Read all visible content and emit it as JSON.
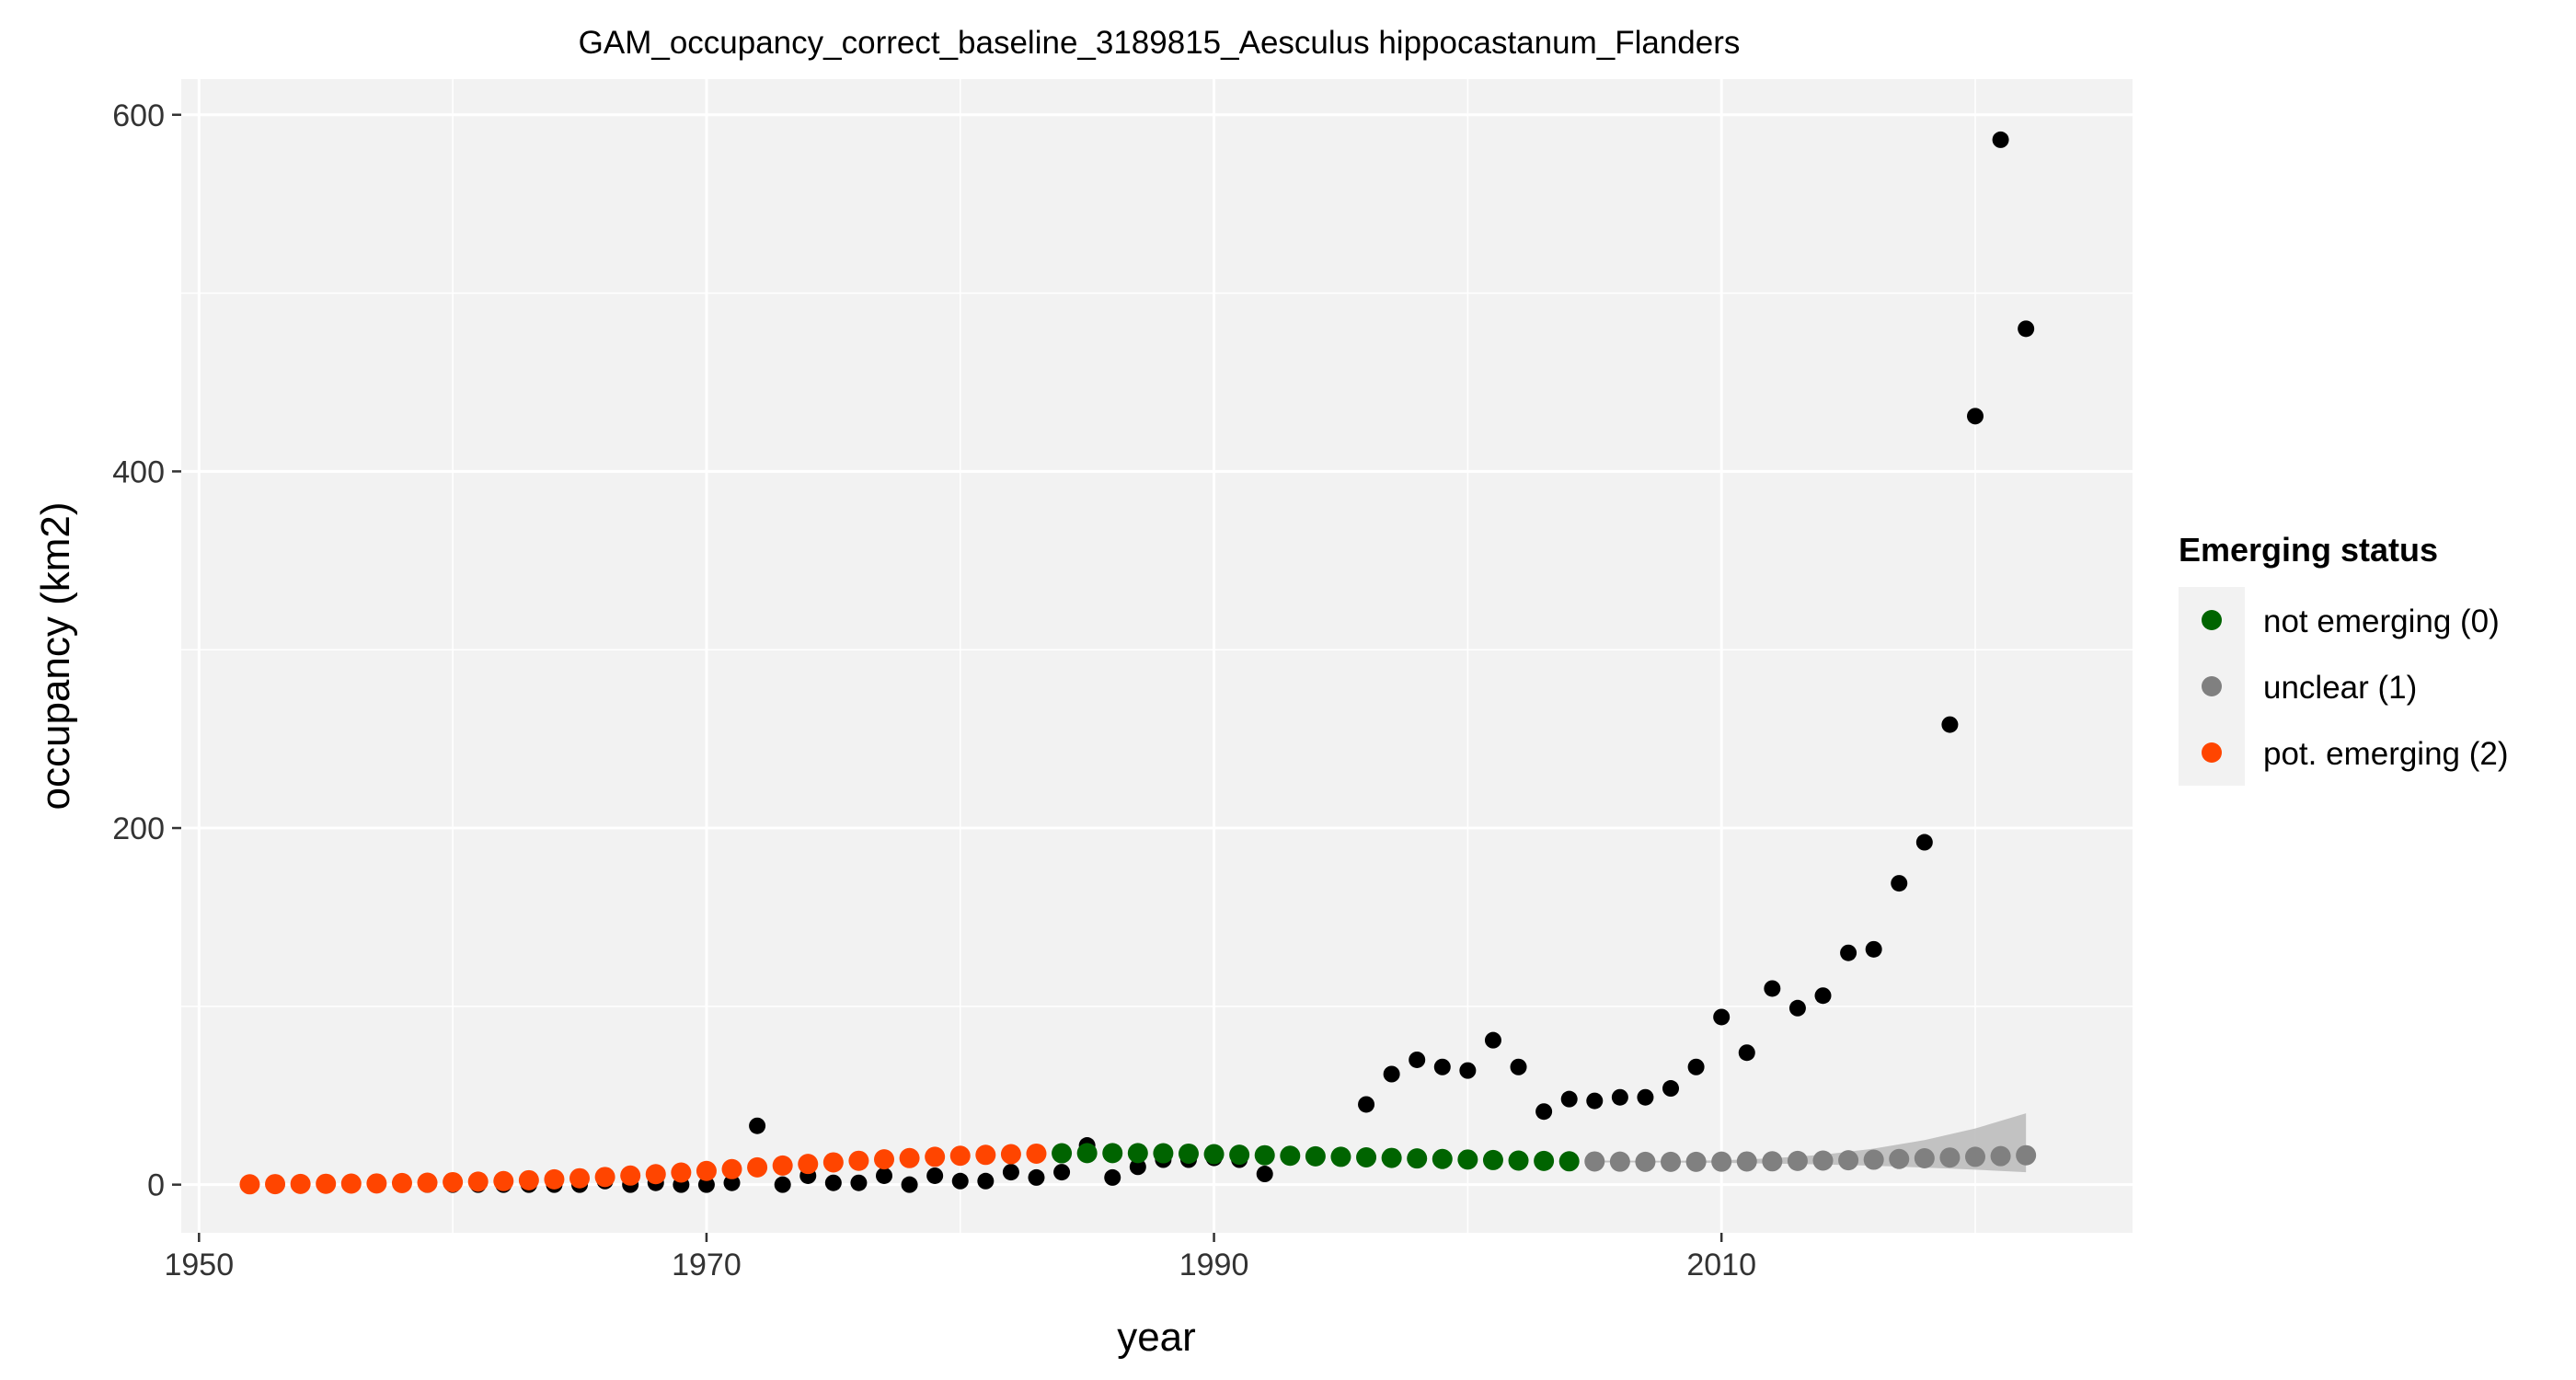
{
  "chart_data": {
    "type": "scatter",
    "title": "GAM_occupancy_correct_baseline_3189815_Aesculus hippocastanum_Flanders",
    "xlabel": "year",
    "ylabel": "occupancy (km2)",
    "xlim": [
      1949.3,
      2026.2
    ],
    "ylim": [
      -27,
      620
    ],
    "x_ticks": [
      1950,
      1970,
      1990,
      2010
    ],
    "y_ticks": [
      0,
      200,
      400,
      600
    ],
    "grid": true,
    "legend_position": "right",
    "legend": {
      "title": "Emerging status",
      "entries": [
        {
          "label": "not emerging (0)",
          "color": "#006400"
        },
        {
          "label": "unclear (1)",
          "color": "#808080"
        },
        {
          "label": "pot. emerging (2)",
          "color": "#ff4500"
        }
      ]
    },
    "colors": {
      "panel_background": "#f2f2f2",
      "grid": "#ffffff",
      "observed": "#000000",
      "ribbon": "#bdbdbd"
    },
    "observed": {
      "name": "observed",
      "x": [
        1952,
        1953,
        1954,
        1955,
        1956,
        1957,
        1958,
        1959,
        1960,
        1961,
        1962,
        1963,
        1964,
        1965,
        1966,
        1967,
        1968,
        1969,
        1970,
        1971,
        1972,
        1973,
        1974,
        1975,
        1976,
        1977,
        1978,
        1979,
        1980,
        1981,
        1982,
        1983,
        1984,
        1985,
        1986,
        1987,
        1988,
        1989,
        1990,
        1991,
        1992,
        1993,
        1994,
        1995,
        1996,
        1997,
        1998,
        1999,
        2000,
        2001,
        2002,
        2003,
        2004,
        2005,
        2006,
        2007,
        2008,
        2009,
        2010,
        2011,
        2012,
        2013,
        2014,
        2015,
        2016,
        2017,
        2018,
        2019,
        2020,
        2021,
        2022
      ],
      "y": [
        0,
        0,
        0,
        0,
        0,
        0,
        0,
        0,
        0,
        0,
        0,
        0,
        0,
        0,
        2,
        0,
        1,
        0,
        0,
        1,
        33,
        0,
        5,
        1,
        1,
        5,
        0,
        5,
        2,
        2,
        7,
        4,
        7,
        22,
        4,
        10,
        14,
        14,
        15,
        14,
        6,
        16,
        16,
        16,
        45,
        62,
        70,
        66,
        64,
        81,
        66,
        41,
        48,
        47,
        49,
        49,
        54,
        66,
        94,
        74,
        110,
        99,
        106,
        130,
        132,
        169,
        192,
        258,
        431,
        586,
        480
      ]
    },
    "gam_fit": {
      "name": "GAM fit",
      "x": [
        1952,
        1953,
        1954,
        1955,
        1956,
        1957,
        1958,
        1959,
        1960,
        1961,
        1962,
        1963,
        1964,
        1965,
        1966,
        1967,
        1968,
        1969,
        1970,
        1971,
        1972,
        1973,
        1974,
        1975,
        1976,
        1977,
        1978,
        1979,
        1980,
        1981,
        1982,
        1983,
        1984,
        1985,
        1986,
        1987,
        1988,
        1989,
        1990,
        1991,
        1992,
        1993,
        1994,
        1995,
        1996,
        1997,
        1998,
        1999,
        2000,
        2001,
        2002,
        2003,
        2004,
        2005,
        2006,
        2007,
        2008,
        2009,
        2010,
        2011,
        2012,
        2013,
        2014,
        2015,
        2016,
        2017,
        2018,
        2019,
        2020,
        2021,
        2022
      ],
      "y": [
        0.2,
        0.3,
        0.4,
        0.5,
        0.6,
        0.7,
        0.9,
        1.1,
        1.4,
        1.7,
        2.0,
        2.5,
        3.0,
        3.6,
        4.3,
        5.1,
        5.9,
        6.8,
        7.7,
        8.7,
        9.7,
        10.7,
        11.6,
        12.5,
        13.4,
        14.2,
        14.9,
        15.6,
        16.2,
        16.7,
        17.1,
        17.4,
        17.6,
        17.7,
        17.7,
        17.7,
        17.6,
        17.4,
        17.1,
        16.8,
        16.5,
        16.2,
        15.9,
        15.6,
        15.3,
        15.0,
        14.7,
        14.4,
        14.1,
        13.8,
        13.5,
        13.3,
        13.1,
        13.0,
        12.9,
        12.8,
        12.8,
        12.8,
        12.9,
        13.0,
        13.1,
        13.3,
        13.5,
        13.7,
        14.0,
        14.4,
        14.8,
        15.2,
        15.6,
        16.0,
        16.5
      ],
      "status": [
        2,
        2,
        2,
        2,
        2,
        2,
        2,
        2,
        2,
        2,
        2,
        2,
        2,
        2,
        2,
        2,
        2,
        2,
        2,
        2,
        2,
        2,
        2,
        2,
        2,
        2,
        2,
        2,
        2,
        2,
        2,
        2,
        0,
        0,
        0,
        0,
        0,
        0,
        0,
        0,
        0,
        0,
        0,
        0,
        0,
        0,
        0,
        0,
        0,
        0,
        0,
        0,
        0,
        1,
        1,
        1,
        1,
        1,
        1,
        1,
        1,
        1,
        1,
        1,
        1,
        1,
        1,
        1,
        1,
        1,
        1
      ]
    },
    "confidence_band": {
      "x": [
        2005,
        2008,
        2010,
        2012,
        2014,
        2016,
        2018,
        2020,
        2022
      ],
      "lower": [
        12.5,
        12.4,
        12.2,
        11.8,
        11.3,
        10.6,
        9.6,
        8.4,
        7.0
      ],
      "upper": [
        13.5,
        13.4,
        13.6,
        14.8,
        16.8,
        20.2,
        25.0,
        31.5,
        40.0
      ]
    }
  }
}
